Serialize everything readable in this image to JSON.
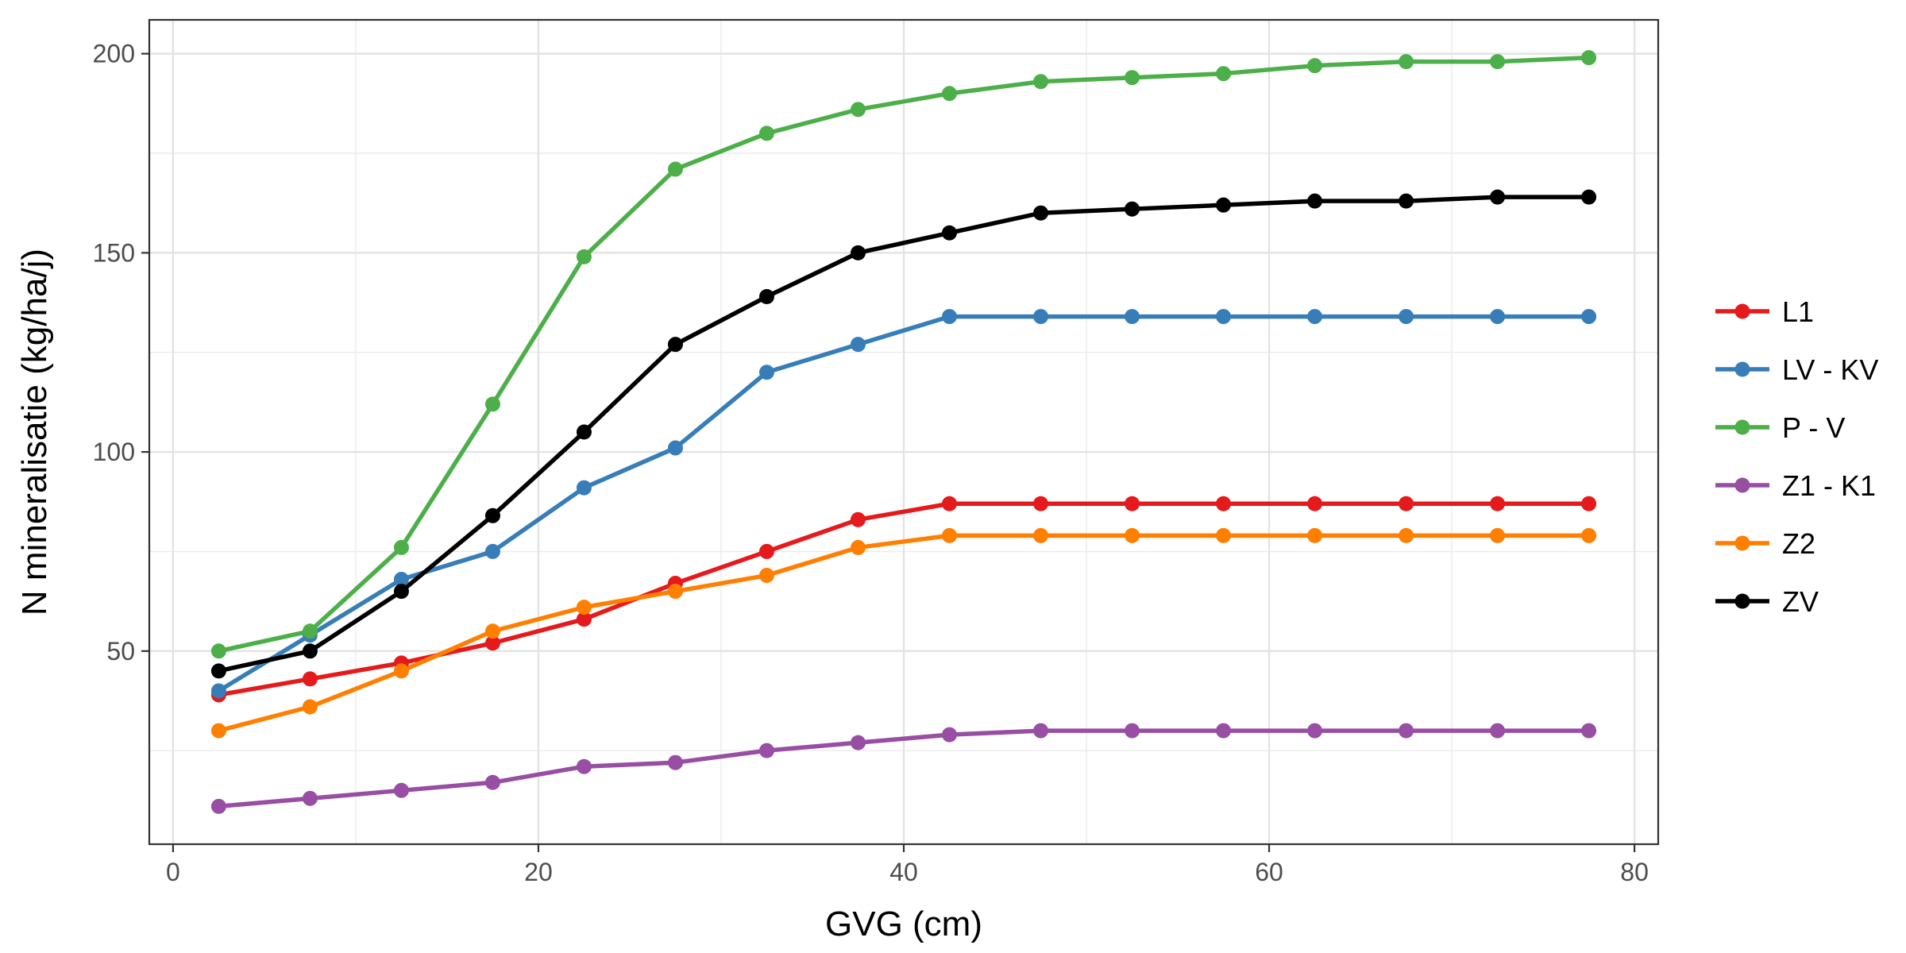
{
  "chart_data": {
    "type": "line",
    "title": "",
    "xlabel": "GVG (cm)",
    "ylabel": "N mineralisatie (kg/ha/j)",
    "xlim": [
      -1.3,
      81.3
    ],
    "ylim": [
      1.5,
      208.5
    ],
    "x_ticks": [
      0,
      20,
      40,
      60,
      80
    ],
    "y_ticks": [
      50,
      100,
      150,
      200
    ],
    "grid": true,
    "legend_position": "right",
    "x": [
      2.5,
      7.5,
      12.5,
      17.5,
      22.5,
      27.5,
      32.5,
      37.5,
      42.5,
      47.5,
      52.5,
      57.5,
      62.5,
      67.5,
      72.5,
      77.5
    ],
    "series": [
      {
        "name": "L1",
        "color": "#e41a1c",
        "values": [
          39,
          43,
          47,
          52,
          58,
          67,
          75,
          83,
          87,
          87,
          87,
          87,
          87,
          87,
          87,
          87
        ]
      },
      {
        "name": "LV - KV",
        "color": "#377eb8",
        "values": [
          40,
          54,
          68,
          75,
          91,
          101,
          120,
          127,
          134,
          134,
          134,
          134,
          134,
          134,
          134,
          134
        ]
      },
      {
        "name": "P - V",
        "color": "#4daf4a",
        "values": [
          50,
          55,
          76,
          112,
          149,
          171,
          180,
          186,
          190,
          193,
          194,
          195,
          197,
          198,
          198,
          199
        ]
      },
      {
        "name": "Z1 - K1",
        "color": "#984ea3",
        "values": [
          11,
          13,
          15,
          17,
          21,
          22,
          25,
          27,
          29,
          30,
          30,
          30,
          30,
          30,
          30,
          30
        ]
      },
      {
        "name": "Z2",
        "color": "#ff7f00",
        "values": [
          30,
          36,
          45,
          55,
          61,
          65,
          69,
          76,
          79,
          79,
          79,
          79,
          79,
          79,
          79,
          79
        ]
      },
      {
        "name": "ZV",
        "color": "#000000",
        "values": [
          45,
          50,
          65,
          84,
          105,
          127,
          139,
          150,
          155,
          160,
          161,
          162,
          163,
          163,
          164,
          164
        ]
      }
    ]
  }
}
